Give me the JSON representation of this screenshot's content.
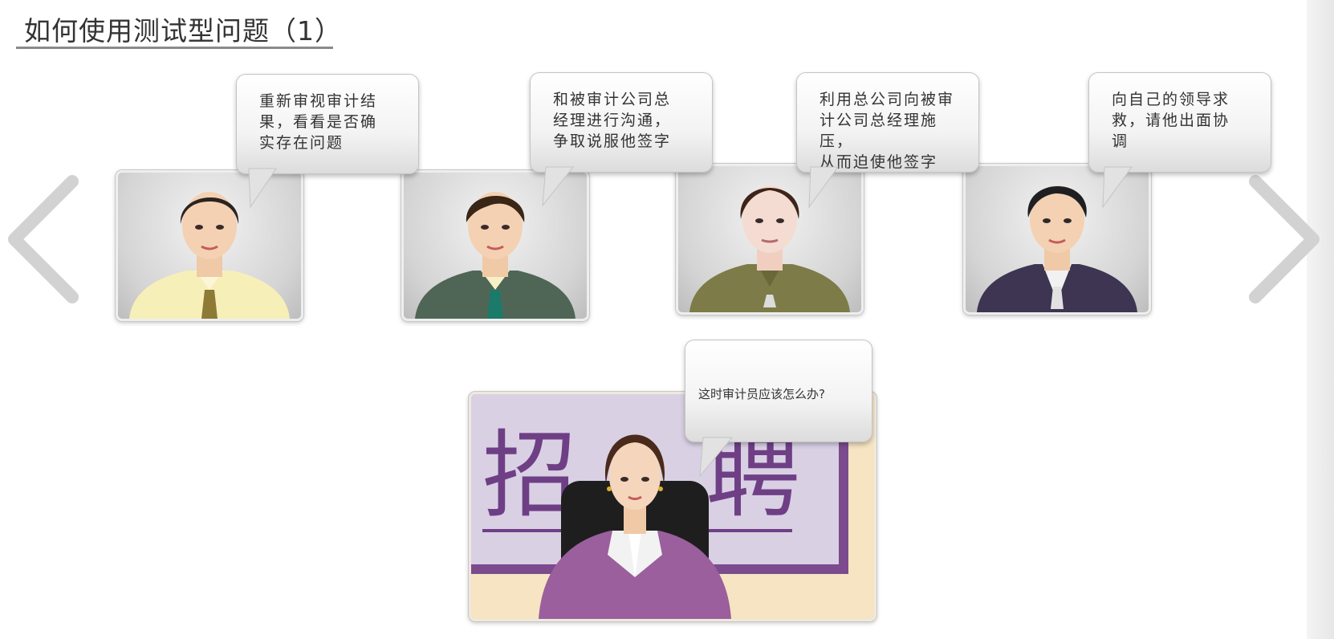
{
  "page": {
    "title": "如何使用测试型问题（1）"
  },
  "options": [
    {
      "line1": "重新审视审计结",
      "line2": "果，看看是否确",
      "line3": "实存在问题",
      "shirt_color": "#f6efb8",
      "tie_color": "#8c7a35"
    },
    {
      "line1": "和被审计公司总",
      "line2": "经理进行沟通，",
      "line3": "争取说服他签字",
      "shirt_color": "#4f6656",
      "tie_color": "#1b7a6a"
    },
    {
      "line1": "利用总公司向被审",
      "line2": "计公司总经理施压，",
      "line3": "从而迫使他签字",
      "shirt_color": "#7d7b47",
      "tie_color": "#dcdcdc"
    },
    {
      "line1": "向自己的领导求",
      "line2": "救，请他出面协",
      "line3": "调",
      "shirt_color": "#3d3552",
      "tie_color": "#e2e2e2"
    }
  ],
  "scene": {
    "question": "这时审计员应该怎么办?",
    "sign_left": "招",
    "sign_right": "聘",
    "suit_color": "#9a5f9c",
    "sign_color": "#6f3f86"
  },
  "navigation": {
    "prev_icon": "chevron-left-icon",
    "next_icon": "chevron-right-icon"
  }
}
